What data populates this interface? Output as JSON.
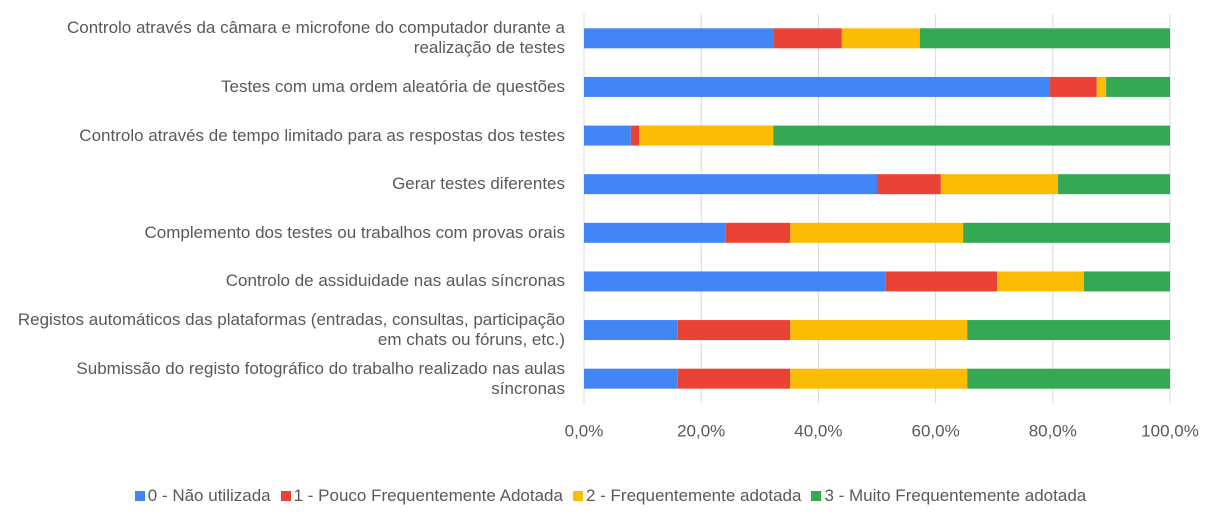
{
  "chart_data": {
    "type": "stacked_barh",
    "categories": [
      "Controlo através da câmara e microfone do computador durante a realização de testes",
      "Testes com uma ordem aleatória de questões",
      "Controlo através de tempo limitado para as respostas dos testes",
      "Gerar testes diferentes",
      "Complemento dos testes ou trabalhos com provas orais",
      "Controlo de assiduidade nas aulas síncronas",
      "Registos automáticos das plataformas (entradas, consultas, participação em chats ou fóruns, etc.)",
      "Submissão do registo fotográfico do trabalho realizado nas aulas síncronas"
    ],
    "series": [
      {
        "name": "0 - Não utilizada",
        "color": "#4285f4",
        "values": [
          32.3,
          79.4,
          8.0,
          50.0,
          24.2,
          51.5,
          16.0,
          16.0
        ]
      },
      {
        "name": "1 - Pouco Frequentemente Adotada",
        "color": "#ea4335",
        "values": [
          11.7,
          8.1,
          1.4,
          10.9,
          11.0,
          19.0,
          19.2,
          19.2
        ]
      },
      {
        "name": "2 - Frequentemente adotada",
        "color": "#fbbc04",
        "values": [
          13.3,
          1.6,
          22.9,
          20.0,
          29.5,
          14.8,
          30.2,
          30.2
        ]
      },
      {
        "name": "3 - Muito Frequentemente adotada",
        "color": "#34a853",
        "values": [
          42.7,
          10.9,
          67.7,
          19.1,
          35.3,
          14.7,
          34.6,
          34.6
        ]
      }
    ],
    "xlim": [
      0,
      100
    ],
    "xticks": [
      {
        "value": 0,
        "label": "0,0%"
      },
      {
        "value": 20,
        "label": "20,0%"
      },
      {
        "value": 40,
        "label": "40,0%"
      },
      {
        "value": 60,
        "label": "60,0%"
      },
      {
        "value": 80,
        "label": "80,0%"
      },
      {
        "value": 100,
        "label": "100,0%"
      }
    ],
    "grid": true,
    "legend": "bottom"
  }
}
